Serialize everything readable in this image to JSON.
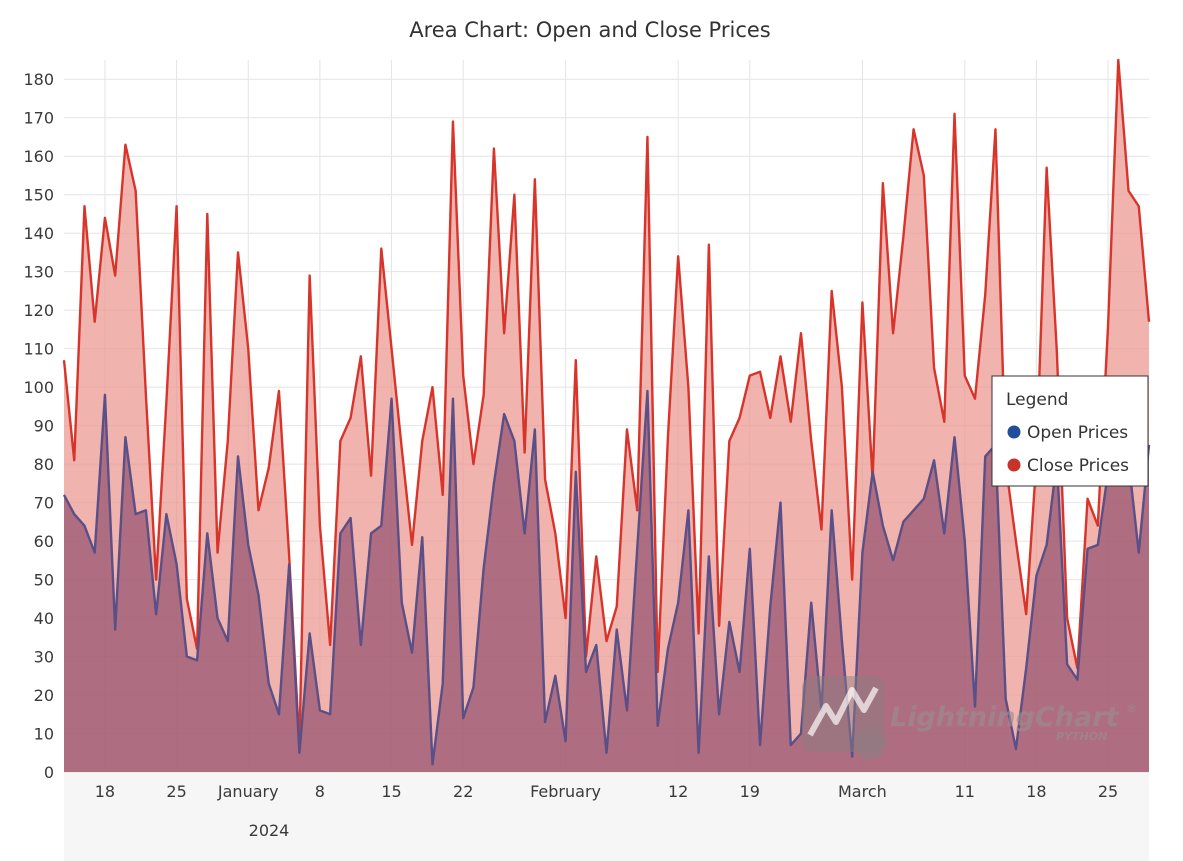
{
  "chart_data": {
    "type": "area",
    "title": "Area Chart: Open and Close Prices",
    "ylim": [
      0,
      185
    ],
    "yticks": [
      0,
      10,
      20,
      30,
      40,
      50,
      60,
      70,
      80,
      90,
      100,
      110,
      120,
      130,
      140,
      150,
      160,
      170,
      180
    ],
    "x_start": "2023-12-14",
    "x_end": "2024-03-29",
    "x": [
      "2023-12-14",
      "2023-12-15",
      "2023-12-16",
      "2023-12-17",
      "2023-12-18",
      "2023-12-19",
      "2023-12-20",
      "2023-12-21",
      "2023-12-22",
      "2023-12-23",
      "2023-12-24",
      "2023-12-25",
      "2023-12-26",
      "2023-12-27",
      "2023-12-28",
      "2023-12-29",
      "2023-12-30",
      "2023-12-31",
      "2024-01-01",
      "2024-01-02",
      "2024-01-03",
      "2024-01-04",
      "2024-01-05",
      "2024-01-06",
      "2024-01-07",
      "2024-01-08",
      "2024-01-09",
      "2024-01-10",
      "2024-01-11",
      "2024-01-12",
      "2024-01-13",
      "2024-01-14",
      "2024-01-15",
      "2024-01-16",
      "2024-01-17",
      "2024-01-18",
      "2024-01-19",
      "2024-01-20",
      "2024-01-21",
      "2024-01-22",
      "2024-01-23",
      "2024-01-24",
      "2024-01-25",
      "2024-01-26",
      "2024-01-27",
      "2024-01-28",
      "2024-01-29",
      "2024-01-30",
      "2024-01-31",
      "2024-02-01",
      "2024-02-02",
      "2024-02-03",
      "2024-02-04",
      "2024-02-05",
      "2024-02-06",
      "2024-02-07",
      "2024-02-08",
      "2024-02-09",
      "2024-02-10",
      "2024-02-11",
      "2024-02-12",
      "2024-02-13",
      "2024-02-14",
      "2024-02-15",
      "2024-02-16",
      "2024-02-17",
      "2024-02-18",
      "2024-02-19",
      "2024-02-20",
      "2024-02-21",
      "2024-02-22",
      "2024-02-23",
      "2024-02-24",
      "2024-02-25",
      "2024-02-26",
      "2024-02-27",
      "2024-02-28",
      "2024-02-29",
      "2024-03-01",
      "2024-03-02",
      "2024-03-03",
      "2024-03-04",
      "2024-03-05",
      "2024-03-06",
      "2024-03-07",
      "2024-03-08",
      "2024-03-09",
      "2024-03-10",
      "2024-03-11",
      "2024-03-12",
      "2024-03-13",
      "2024-03-14",
      "2024-03-15",
      "2024-03-16",
      "2024-03-17",
      "2024-03-18",
      "2024-03-19",
      "2024-03-20",
      "2024-03-21",
      "2024-03-22",
      "2024-03-23",
      "2024-03-24",
      "2024-03-25",
      "2024-03-26",
      "2024-03-27",
      "2024-03-28",
      "2024-03-29"
    ],
    "xticks": [
      {
        "date": "2023-12-18",
        "label": "18"
      },
      {
        "date": "2023-12-25",
        "label": "25"
      },
      {
        "date": "2024-01-01",
        "label": "January"
      },
      {
        "date": "2024-01-08",
        "label": "8"
      },
      {
        "date": "2024-01-15",
        "label": "15"
      },
      {
        "date": "2024-01-22",
        "label": "22"
      },
      {
        "date": "2024-02-01",
        "label": "February"
      },
      {
        "date": "2024-02-12",
        "label": "12"
      },
      {
        "date": "2024-02-19",
        "label": "19"
      },
      {
        "date": "2024-03-01",
        "label": "March"
      },
      {
        "date": "2024-03-11",
        "label": "11"
      },
      {
        "date": "2024-03-18",
        "label": "18"
      },
      {
        "date": "2024-03-25",
        "label": "25"
      }
    ],
    "year_label": "2024",
    "grid": true,
    "legend_position": "right",
    "series": [
      {
        "name": "Open Prices",
        "color": "#1f4e9c",
        "line_color": "#5a4f86",
        "fill_color": "#9b5a73",
        "values": [
          72,
          67,
          64,
          57,
          98,
          37,
          87,
          67,
          68,
          41,
          67,
          54,
          30,
          29,
          62,
          40,
          34,
          82,
          59,
          46,
          23,
          15,
          54,
          5,
          36,
          16,
          15,
          62,
          66,
          33,
          62,
          64,
          97,
          44,
          31,
          61,
          2,
          23,
          97,
          14,
          22,
          53,
          75,
          93,
          86,
          62,
          89,
          13,
          25,
          8,
          78,
          26,
          33,
          5,
          37,
          16,
          58,
          99,
          12,
          32,
          44,
          68,
          5,
          56,
          15,
          39,
          26,
          58,
          7,
          43,
          70,
          7,
          10,
          44,
          16,
          68,
          34,
          4,
          57,
          78,
          64,
          55,
          65,
          68,
          71,
          81,
          62,
          87,
          60,
          17,
          82,
          85,
          19,
          6,
          27,
          51,
          59,
          81,
          28,
          24,
          58,
          59,
          78,
          85,
          81,
          57,
          85
        ]
      },
      {
        "name": "Close Prices",
        "color": "#c83228",
        "line_color": "#d7352b",
        "fill_color": "#ec968e",
        "values": [
          107,
          81,
          147,
          117,
          144,
          129,
          163,
          151,
          98,
          50,
          96,
          147,
          45,
          32,
          145,
          57,
          86,
          135,
          110,
          68,
          79,
          99,
          56,
          7,
          129,
          64,
          33,
          86,
          92,
          108,
          77,
          136,
          110,
          84,
          59,
          86,
          100,
          72,
          169,
          103,
          80,
          98,
          162,
          114,
          150,
          83,
          154,
          76,
          62,
          40,
          107,
          30,
          56,
          34,
          43,
          89,
          68,
          165,
          26,
          87,
          134,
          100,
          36,
          137,
          38,
          86,
          92,
          103,
          104,
          92,
          108,
          91,
          114,
          86,
          63,
          125,
          100,
          50,
          122,
          76,
          153,
          114,
          139,
          167,
          155,
          105,
          91,
          171,
          103,
          97,
          124,
          167,
          80,
          60,
          41,
          81,
          157,
          109,
          40,
          27,
          71,
          64,
          116,
          185,
          151,
          147,
          117
        ]
      }
    ]
  },
  "legend": {
    "title": "Legend",
    "items": [
      {
        "label": "Open Prices",
        "color": "#1f4e9c"
      },
      {
        "label": "Close Prices",
        "color": "#c83228"
      }
    ]
  },
  "watermark": {
    "text": "LightningChart",
    "mark": "®",
    "sub": "PYTHON"
  }
}
